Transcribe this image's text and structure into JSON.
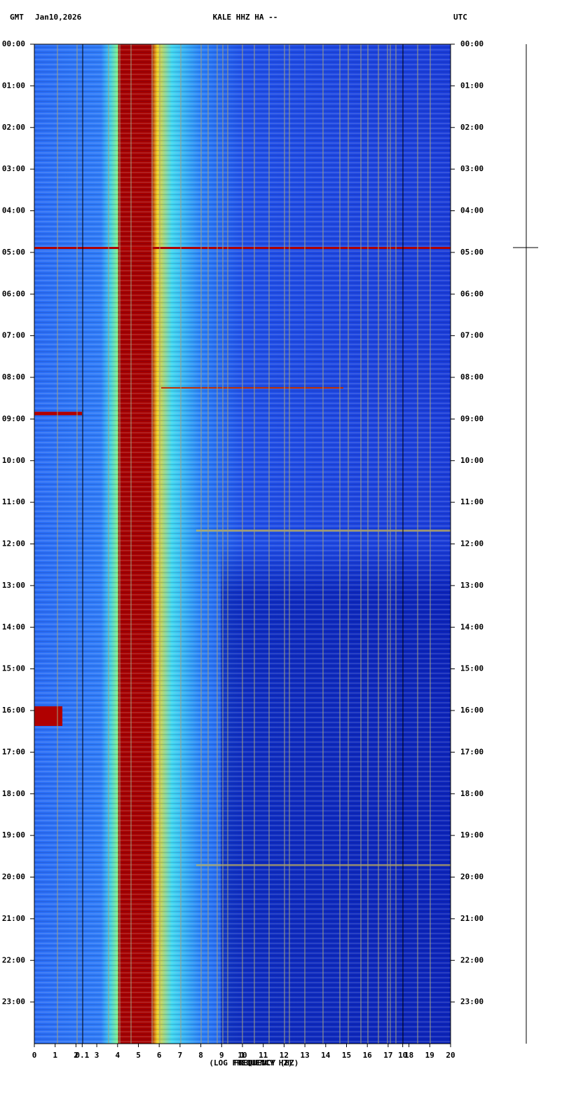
{
  "header": {
    "left": "GMT",
    "date": "Jan10,2026",
    "station": "KALE HHZ HA --",
    "right": "UTC"
  },
  "chart_data": {
    "type": "spectrogram",
    "xlabel": "(LOG FREQUENCY HZ)",
    "xlabel2": "FREQUENCY (HZ)",
    "xlim": [
      0,
      20
    ],
    "xticks": [
      0,
      1,
      2,
      3,
      4,
      5,
      6,
      7,
      8,
      9,
      10,
      11,
      12,
      13,
      14,
      15,
      16,
      17,
      18,
      19,
      20
    ],
    "log_xticks": [
      {
        "value": 2.3,
        "label": "0.1"
      },
      {
        "value": 10,
        "label": "1"
      },
      {
        "value": 17.7,
        "label": "10"
      }
    ],
    "ylim": [
      0,
      24
    ],
    "yticks": [
      {
        "value": 0,
        "label": "00:00"
      },
      {
        "value": 1,
        "label": "01:00"
      },
      {
        "value": 2,
        "label": "02:00"
      },
      {
        "value": 3,
        "label": "03:00"
      },
      {
        "value": 4,
        "label": "04:00"
      },
      {
        "value": 5,
        "label": "05:00"
      },
      {
        "value": 6,
        "label": "06:00"
      },
      {
        "value": 7,
        "label": "07:00"
      },
      {
        "value": 8,
        "label": "08:00"
      },
      {
        "value": 9,
        "label": "09:00"
      },
      {
        "value": 10,
        "label": "10:00"
      },
      {
        "value": 11,
        "label": "11:00"
      },
      {
        "value": 12,
        "label": "12:00"
      },
      {
        "value": 13,
        "label": "13:00"
      },
      {
        "value": 14,
        "label": "14:00"
      },
      {
        "value": 15,
        "label": "15:00"
      },
      {
        "value": 16,
        "label": "16:00"
      },
      {
        "value": 17,
        "label": "17:00"
      },
      {
        "value": 18,
        "label": "18:00"
      },
      {
        "value": 19,
        "label": "19:00"
      },
      {
        "value": 20,
        "label": "20:00"
      },
      {
        "value": 21,
        "label": "21:00"
      },
      {
        "value": 22,
        "label": "22:00"
      },
      {
        "value": 23,
        "label": "23:00"
      }
    ]
  }
}
